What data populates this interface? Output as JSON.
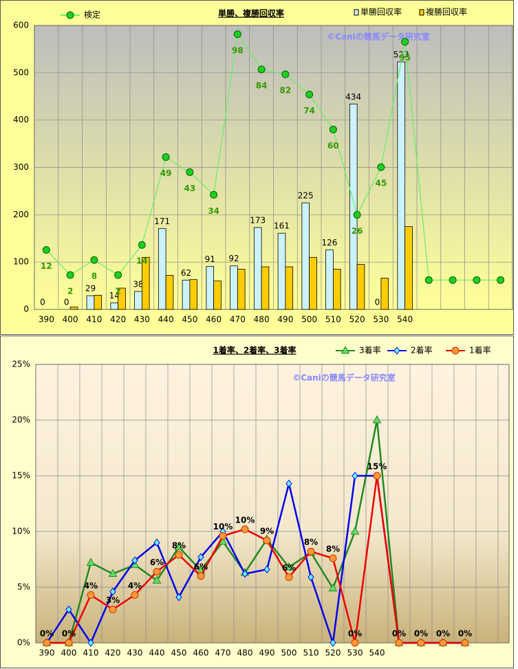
{
  "chart_data": [
    {
      "type": "combo",
      "title": "単勝、複勝回収率",
      "annotation": "©Caniの競馬データ研究室",
      "categories": [
        "390",
        "400",
        "410",
        "420",
        "430",
        "440",
        "450",
        "460",
        "470",
        "480",
        "490",
        "500",
        "510",
        "520",
        "530",
        "540",
        null,
        null,
        null,
        null
      ],
      "ylim": [
        0,
        600
      ],
      "yticks": [
        0,
        100,
        200,
        300,
        400,
        500,
        600
      ],
      "y2lim": [
        -11.7,
        101.5
      ],
      "grid": true,
      "series": [
        {
          "name": "単勝回収率",
          "type": "bar",
          "color": "#ccf2ff",
          "values": [
            0,
            0,
            29,
            14,
            38,
            171,
            62,
            91,
            92,
            173,
            161,
            225,
            126,
            434,
            0,
            523,
            null,
            null,
            null,
            null
          ]
        },
        {
          "name": "複勝回収率",
          "type": "bar",
          "color": "#ffcc00",
          "values": [
            0,
            5,
            30,
            45,
            110,
            72,
            63,
            60,
            85,
            90,
            90,
            110,
            85,
            95,
            66,
            175,
            null,
            null,
            null,
            null
          ]
        },
        {
          "name": "検定",
          "type": "line",
          "axis": "y2",
          "color": "#66ee66",
          "marker_color": "#22cc22",
          "values": [
            12,
            2,
            8,
            2,
            14,
            49,
            43,
            34,
            98,
            84,
            82,
            74,
            60,
            26,
            45,
            95,
            0,
            0,
            0,
            0
          ],
          "value_labels": [
            "12",
            "2",
            "8",
            "2",
            "14",
            "49",
            "43",
            "34",
            "98",
            "84",
            "82",
            "74",
            "60",
            "26",
            "45",
            "95",
            null,
            null,
            null,
            null
          ]
        }
      ]
    },
    {
      "type": "line",
      "title": "1着率、2着率、3着率",
      "annotation": "©Caniの競馬データ研究室",
      "categories": [
        "390",
        "400",
        "410",
        "420",
        "430",
        "440",
        "450",
        "460",
        "470",
        "480",
        "490",
        "500",
        "510",
        "520",
        "530",
        "540",
        null,
        null,
        null,
        null
      ],
      "ylim": [
        0,
        25
      ],
      "yticks": [
        {
          "value": 0,
          "label": "0%"
        },
        {
          "value": 5,
          "label": "5%"
        },
        {
          "value": 10,
          "label": "10%"
        },
        {
          "value": 15,
          "label": "15%"
        },
        {
          "value": 20,
          "label": "20%"
        },
        {
          "value": 25,
          "label": "25%"
        }
      ],
      "grid": true,
      "series": [
        {
          "name": "3着率",
          "color": "#228822",
          "marker": "triangle",
          "marker_color": "#66dd66",
          "values": [
            0,
            0,
            7.2,
            6.2,
            7.0,
            5.6,
            8.6,
            6.5,
            9.1,
            6.3,
            9.3,
            6.8,
            8.1,
            4.9,
            10.0,
            20.0,
            0,
            0,
            0,
            0
          ]
        },
        {
          "name": "2着率",
          "color": "#0000ee",
          "marker": "diamond",
          "marker_color": "#66ffff",
          "values": [
            0,
            3.0,
            0,
            4.6,
            7.4,
            9.0,
            4.1,
            7.7,
            10.0,
            6.2,
            6.6,
            14.3,
            5.9,
            0,
            15.0,
            15.0,
            0,
            0,
            0,
            0
          ]
        },
        {
          "name": "1着率",
          "color": "#ee0000",
          "marker": "circle",
          "marker_color": "#ff9933",
          "values": [
            0,
            0,
            4.3,
            3.0,
            4.3,
            6.4,
            7.9,
            6.0,
            9.6,
            10.2,
            9.2,
            5.9,
            8.2,
            7.6,
            0,
            15.0,
            0,
            0,
            0,
            0
          ],
          "value_labels": [
            "0%",
            "0%",
            "4%",
            "3%",
            "4%",
            "6%",
            "8%",
            "6%",
            "10%",
            "10%",
            "9%",
            "6%",
            "8%",
            "8%",
            "0%",
            "15%",
            "0%",
            "0%",
            "0%",
            "0%"
          ]
        }
      ]
    }
  ]
}
